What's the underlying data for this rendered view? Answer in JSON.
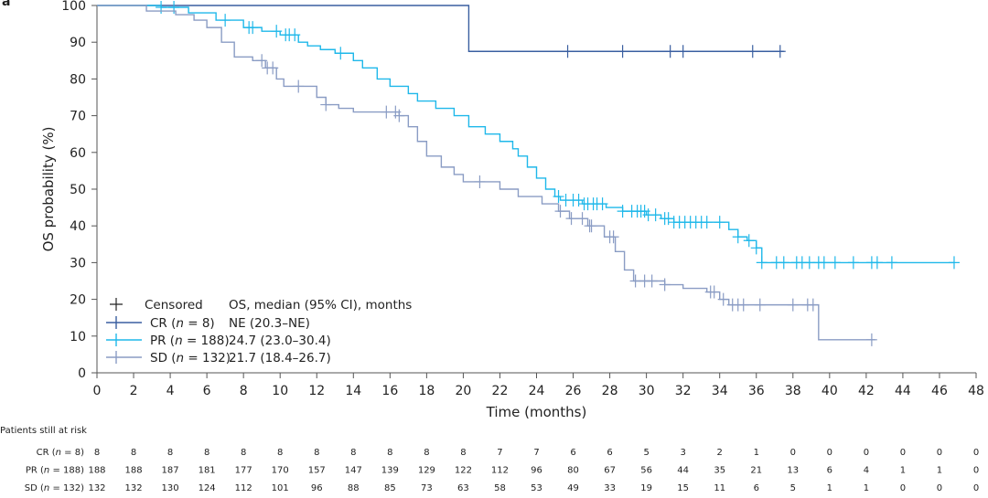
{
  "panel_label": "a",
  "chart_data": {
    "type": "line",
    "subtype": "kaplan-meier",
    "xlabel": "Time (months)",
    "ylabel": "OS probability (%)",
    "xlim": [
      0,
      48
    ],
    "ylim": [
      0,
      100
    ],
    "xticks": [
      0,
      2,
      4,
      6,
      8,
      10,
      12,
      14,
      16,
      18,
      20,
      22,
      24,
      26,
      28,
      30,
      32,
      34,
      36,
      38,
      40,
      42,
      44,
      46,
      48
    ],
    "yticks": [
      0,
      10,
      20,
      30,
      40,
      50,
      60,
      70,
      80,
      90,
      100
    ],
    "grid": false,
    "legend": {
      "placement": "bottom-left",
      "censored_label": "Censored",
      "header": "OS, median (95% CI), months"
    },
    "series": [
      {
        "name": "CR (n = 8)",
        "group": "CR",
        "n": "8",
        "median": "NE (20.3–NE)",
        "color": "#3a5fa0",
        "steps": [
          [
            0,
            100
          ],
          [
            20.3,
            87.5
          ],
          [
            37.5,
            87.5
          ]
        ],
        "censored": [
          25.7,
          28.7,
          31.3,
          32.0,
          35.8,
          37.3
        ]
      },
      {
        "name": "PR (n = 188)",
        "group": "PR",
        "n": "188",
        "median": "24.7 (23.0–30.4)",
        "color": "#1fb8ea",
        "steps": [
          [
            0,
            100
          ],
          [
            3.5,
            99.5
          ],
          [
            5,
            98
          ],
          [
            6.5,
            96
          ],
          [
            8,
            94
          ],
          [
            9,
            93
          ],
          [
            10,
            92
          ],
          [
            11,
            90
          ],
          [
            11.5,
            89
          ],
          [
            12.2,
            88
          ],
          [
            13,
            87
          ],
          [
            14,
            85
          ],
          [
            14.5,
            83
          ],
          [
            15.3,
            80
          ],
          [
            16,
            78
          ],
          [
            17,
            76
          ],
          [
            17.5,
            74
          ],
          [
            18.5,
            72
          ],
          [
            19.5,
            70
          ],
          [
            20.3,
            67
          ],
          [
            21.2,
            65
          ],
          [
            22,
            63
          ],
          [
            22.7,
            61
          ],
          [
            23,
            59
          ],
          [
            23.5,
            56
          ],
          [
            24,
            53
          ],
          [
            24.5,
            50
          ],
          [
            25,
            48
          ],
          [
            25.3,
            47
          ],
          [
            26.5,
            46
          ],
          [
            27.8,
            45
          ],
          [
            28.7,
            44
          ],
          [
            30,
            43
          ],
          [
            30.8,
            42
          ],
          [
            31.5,
            41
          ],
          [
            34,
            41
          ],
          [
            34.5,
            39
          ],
          [
            35,
            37
          ],
          [
            35.5,
            36
          ],
          [
            36,
            34
          ],
          [
            36.3,
            30
          ],
          [
            46.8,
            30
          ]
        ],
        "censored": [
          3.5,
          4.2,
          7.0,
          8.3,
          8.5,
          9.8,
          10.3,
          10.5,
          10.8,
          13.3,
          25.2,
          25.6,
          26.0,
          26.3,
          26.6,
          26.8,
          27.1,
          27.3,
          27.6,
          28.7,
          29.2,
          29.5,
          29.7,
          29.9,
          30.1,
          30.5,
          31.0,
          31.2,
          31.5,
          31.8,
          32.1,
          32.4,
          32.7,
          33.0,
          33.3,
          34.0,
          35.0,
          35.6,
          36.0,
          36.3,
          37.1,
          37.5,
          38.2,
          38.5,
          38.9,
          39.4,
          39.7,
          40.3,
          41.3,
          42.3,
          42.6,
          43.4,
          46.8
        ]
      },
      {
        "name": "SD (n = 132)",
        "group": "SD",
        "n": "132",
        "median": "21.7 (18.4–26.7)",
        "color": "#8a9cc4",
        "steps": [
          [
            0,
            100
          ],
          [
            2.7,
            98.5
          ],
          [
            4.3,
            97.5
          ],
          [
            5.3,
            96
          ],
          [
            6,
            94
          ],
          [
            6.8,
            90
          ],
          [
            7.5,
            86
          ],
          [
            8.5,
            85
          ],
          [
            9.2,
            83
          ],
          [
            9.8,
            80
          ],
          [
            10.2,
            78
          ],
          [
            12,
            75
          ],
          [
            12.5,
            73
          ],
          [
            13.2,
            72
          ],
          [
            14,
            71
          ],
          [
            16.5,
            70
          ],
          [
            17,
            67
          ],
          [
            17.5,
            63
          ],
          [
            18,
            59
          ],
          [
            18.8,
            56
          ],
          [
            19.5,
            54
          ],
          [
            20,
            52
          ],
          [
            22,
            50
          ],
          [
            23,
            48
          ],
          [
            24.3,
            46
          ],
          [
            25.2,
            44
          ],
          [
            25.8,
            42
          ],
          [
            26.8,
            40
          ],
          [
            27.7,
            37
          ],
          [
            28.3,
            33
          ],
          [
            28.8,
            28
          ],
          [
            29.3,
            25
          ],
          [
            31,
            24
          ],
          [
            32,
            23
          ],
          [
            33.3,
            22
          ],
          [
            34,
            20
          ],
          [
            34.5,
            18.5
          ],
          [
            39.4,
            9
          ],
          [
            42.5,
            9
          ]
        ],
        "censored": [
          9.0,
          9.3,
          9.6,
          11.0,
          12.5,
          15.8,
          16.3,
          16.5,
          20.9,
          25.3,
          25.9,
          26.5,
          26.9,
          27.0,
          28.0,
          28.2,
          29.4,
          29.9,
          30.3,
          31.0,
          33.5,
          33.7,
          34.2,
          34.7,
          35.0,
          35.3,
          36.2,
          38.0,
          38.8,
          39.1,
          42.3
        ]
      }
    ],
    "risk_table": {
      "title": "Patients still at risk",
      "times": [
        0,
        2,
        4,
        6,
        8,
        10,
        12,
        14,
        16,
        18,
        20,
        22,
        24,
        26,
        28,
        30,
        32,
        34,
        36,
        38,
        40,
        42,
        44,
        46,
        48
      ],
      "rows": [
        {
          "group": "CR",
          "n": "8",
          "values": [
            8,
            8,
            8,
            8,
            8,
            8,
            8,
            8,
            8,
            8,
            8,
            7,
            7,
            6,
            6,
            5,
            3,
            2,
            1,
            0,
            0,
            0,
            0,
            0,
            0
          ]
        },
        {
          "group": "PR",
          "n": "188",
          "values": [
            188,
            188,
            187,
            181,
            177,
            170,
            157,
            147,
            139,
            129,
            122,
            112,
            96,
            80,
            67,
            56,
            44,
            35,
            21,
            13,
            6,
            4,
            1,
            1,
            0
          ]
        },
        {
          "group": "SD",
          "n": "132",
          "values": [
            132,
            132,
            130,
            124,
            112,
            101,
            96,
            88,
            85,
            73,
            63,
            58,
            53,
            49,
            33,
            19,
            15,
            11,
            6,
            5,
            1,
            1,
            0,
            0,
            0
          ]
        }
      ]
    }
  }
}
